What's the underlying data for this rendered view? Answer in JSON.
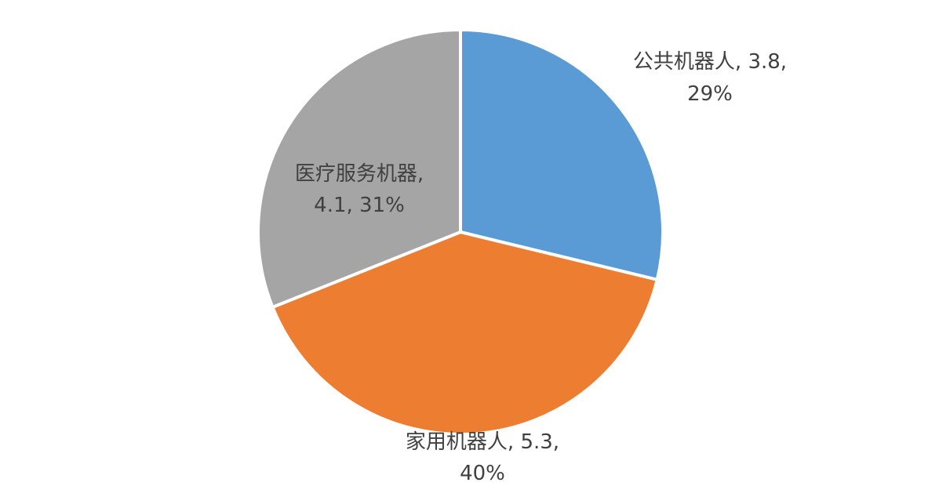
{
  "chart_data": {
    "type": "pie",
    "slices": [
      {
        "name": "公共机器人",
        "value": 3.8,
        "percent": "29%",
        "color": "#5b9bd5"
      },
      {
        "name": "家用机器人",
        "value": 5.3,
        "percent": "40%",
        "color": "#ed7d31"
      },
      {
        "name": "医疗服务机器",
        "value": 4.1,
        "percent": "31%",
        "color": "#a5a5a5"
      }
    ],
    "labels": [
      {
        "line1": "公共机器人, 3.8,",
        "line2": "29%"
      },
      {
        "line1": "家用机器人, 5.3,",
        "line2": "40%"
      },
      {
        "line1": "医疗服务机器,",
        "line2": "4.1, 31%"
      }
    ],
    "start_angle": "12 o'clock",
    "direction": "clockwise",
    "legend": "none"
  }
}
